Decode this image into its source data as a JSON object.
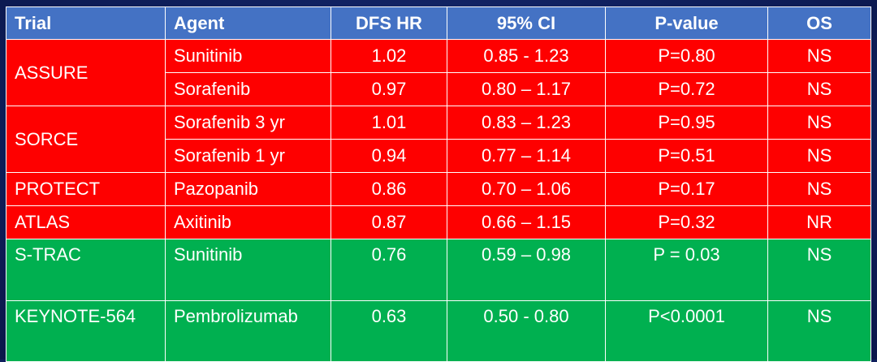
{
  "table": {
    "headers": [
      "Trial",
      "Agent",
      "DFS HR",
      "95% CI",
      "P-value",
      "OS"
    ],
    "rows": [
      {
        "trial": "ASSURE",
        "agent": "Sunitinib",
        "hr": "1.02",
        "ci": "0.85 - 1.23",
        "p": "P=0.80",
        "os": "NS"
      },
      {
        "trial": "",
        "agent": "Sorafenib",
        "hr": "0.97",
        "ci": "0.80 – 1.17",
        "p": "P=0.72",
        "os": "NS"
      },
      {
        "trial": "SORCE",
        "agent": "Sorafenib 3 yr",
        "hr": "1.01",
        "ci": "0.83 – 1.23",
        "p": "P=0.95",
        "os": "NS"
      },
      {
        "trial": "",
        "agent": "Sorafenib 1 yr",
        "hr": "0.94",
        "ci": "0.77 – 1.14",
        "p": "P=0.51",
        "os": "NS"
      },
      {
        "trial": "PROTECT",
        "agent": "Pazopanib",
        "hr": "0.86",
        "ci": "0.70 – 1.06",
        "p": "P=0.17",
        "os": "NS"
      },
      {
        "trial": "ATLAS",
        "agent": "Axitinib",
        "hr": "0.87",
        "ci": "0.66 – 1.15",
        "p": "P=0.32",
        "os": "NR"
      },
      {
        "trial": "S-TRAC",
        "agent": "Sunitinib",
        "hr": "0.76",
        "ci": "0.59 – 0.98",
        "p": "P = 0.03",
        "os": "NS"
      },
      {
        "trial": "KEYNOTE-564",
        "agent": "Pembrolizumab",
        "hr": "0.63",
        "ci": "0.50 - 0.80",
        "p": "P<0.0001",
        "os": "NS"
      }
    ]
  },
  "colors": {
    "background": "#0f1f5c",
    "header": "#4472c4",
    "negative_rows": "#fe0000",
    "positive_rows": "#00b050",
    "text": "#ffffff"
  }
}
